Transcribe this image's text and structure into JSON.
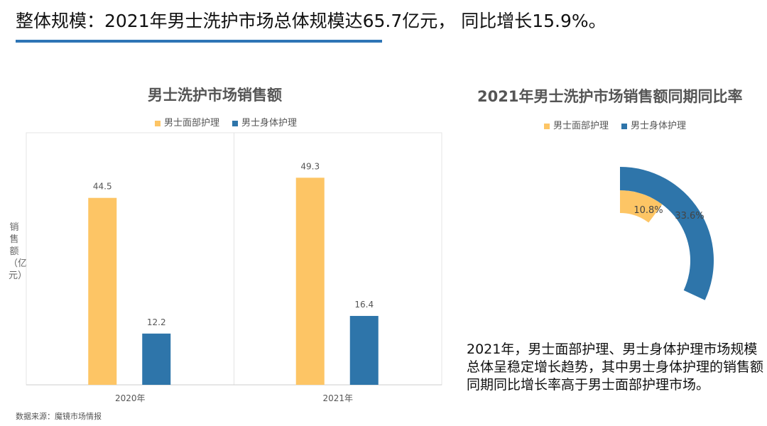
{
  "title": "整体规模：2021年男士洗护市场总体规模达65.7亿元， 同比增长15.9%。",
  "source": "数据来源：魔镜市场情报",
  "description": "2021年，男士面部护理、男士身体护理市场规模总体呈稳定增长趋势，其中男士身体护理的销售额同期同比增长率高于男士面部护理市场。",
  "colors": {
    "face": "#fdc565",
    "body": "#2e75aa",
    "accent": "#2e75b6"
  },
  "chart_data": [
    {
      "type": "bar",
      "title": "男士洗护市场销售额",
      "ylabel": "销售额（亿元）",
      "xlabel": "",
      "ylim": [
        0,
        60
      ],
      "grid": false,
      "legend": "top",
      "categories": [
        "2020年",
        "2021年"
      ],
      "series": [
        {
          "name": "男士面部护理",
          "values": [
            44.5,
            49.3
          ],
          "labels": [
            "44.5",
            "49.3"
          ]
        },
        {
          "name": "男士身体护理",
          "values": [
            12.2,
            16.4
          ],
          "labels": [
            "12.2",
            "16.4"
          ]
        }
      ]
    },
    {
      "type": "radial-bar",
      "title": "2021年男士洗护市场销售额同期同比率",
      "legend": "top",
      "series": [
        {
          "name": "男士面部护理",
          "value": 10.8,
          "label": "10.8%"
        },
        {
          "name": "男士身体护理",
          "value": 33.6,
          "label": "33.6%"
        }
      ]
    }
  ]
}
